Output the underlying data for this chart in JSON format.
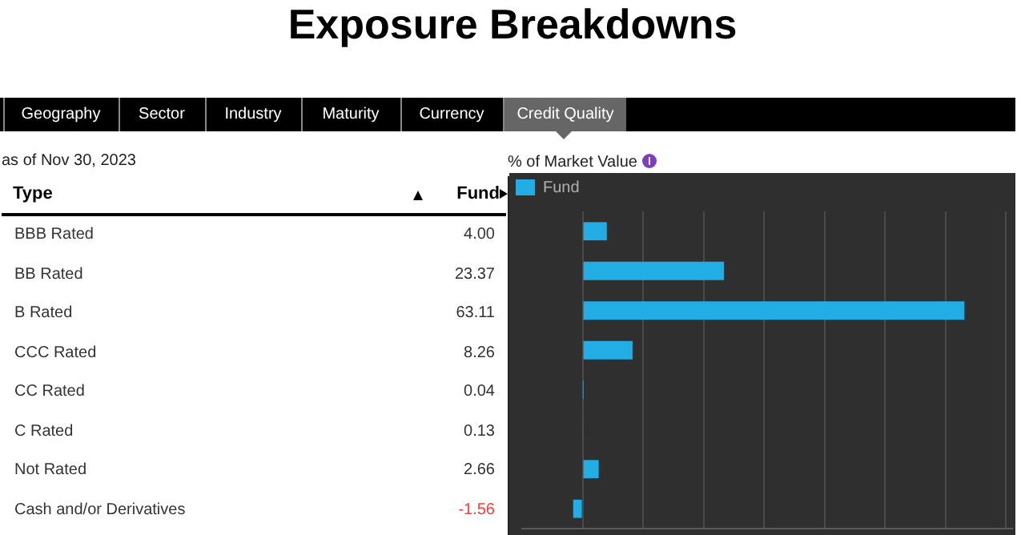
{
  "chart_data": {
    "type": "bar",
    "orientation": "horizontal",
    "title": "Exposure Breakdowns",
    "subtitle": "as of Nov 30, 2023",
    "xlabel": "% of Market Value",
    "ylabel": "Type",
    "categories": [
      "BBB Rated",
      "BB Rated",
      "B Rated",
      "CCC Rated",
      "CC Rated",
      "C Rated",
      "Not Rated",
      "Cash and/or Derivatives"
    ],
    "series": [
      {
        "name": "Fund",
        "color": "#22ade4",
        "values": [
          4.0,
          23.37,
          63.11,
          8.26,
          0.04,
          0.13,
          2.66,
          -1.56
        ],
        "value_labels": [
          "4.00",
          "23.37",
          "63.11",
          "8.26",
          "0.04",
          "0.13",
          "2.66",
          "-1.56"
        ]
      }
    ],
    "xlim": [
      -10,
      71
    ],
    "xticks": [
      {
        "value": 0,
        "label": null
      },
      {
        "value": 10,
        "label": null
      },
      {
        "value": 20,
        "label": null
      },
      {
        "value": 30,
        "label": null
      },
      {
        "value": 40,
        "label": null
      },
      {
        "value": 50,
        "label": null
      },
      {
        "value": 60,
        "label": null
      },
      {
        "value": 70,
        "label": null
      }
    ],
    "grid": "x",
    "legend": "top left",
    "tick_labels": "y",
    "annotations": [
      "Geography",
      "Sector",
      "Industry",
      "Maturity",
      "Currency",
      "Credit Quality"
    ]
  }
}
